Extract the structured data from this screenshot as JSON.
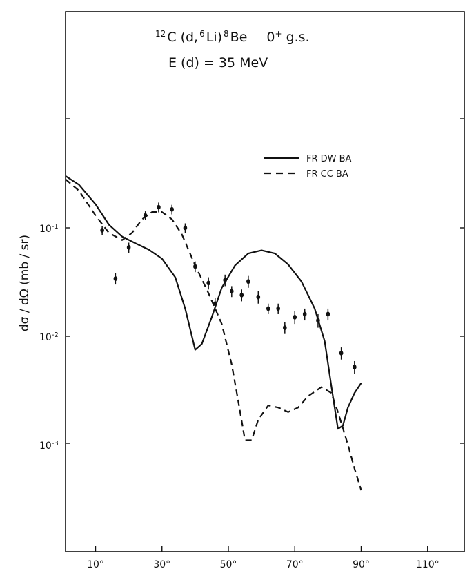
{
  "chart_data": {
    "type": "line",
    "title_lines": [
      "12C(d,6Li)8Be   0+ g.s.",
      "E(d)=35 MeV"
    ],
    "title": {
      "reaction": [
        {
          "sup": "12",
          "text": "C (d,"
        },
        {
          "sup": "6",
          "text": "Li)"
        },
        {
          "sup": "8",
          "text": "Be"
        },
        {
          "text": "0"
        },
        {
          "sup": "+",
          "text": "g.s."
        }
      ],
      "energy": "E (d) = 35  MeV"
    },
    "ylabel": "dσ / dΩ   (mb / sr)",
    "xlabel": "",
    "xlim": [
      0,
      120
    ],
    "ylim": [
      0.00016,
      1.3
    ],
    "yscale": "log",
    "x_ticks": [
      10,
      30,
      50,
      70,
      90,
      110
    ],
    "x_tick_labels": [
      "10°",
      "30°",
      "50°",
      "70°",
      "90°",
      "110°"
    ],
    "y_ticks": [
      0.1,
      0.01,
      0.001
    ],
    "y_tick_labels": [
      {
        "base": "10",
        "exp": "-1"
      },
      {
        "base": "10",
        "exp": "-2"
      },
      {
        "base": "10",
        "exp": "-3"
      }
    ],
    "legend_position": "upper-right",
    "series": [
      {
        "name": "FR DW BA",
        "style": "solid",
        "points": [
          [
            1,
            0.3
          ],
          [
            5,
            0.25
          ],
          [
            10,
            0.165
          ],
          [
            14,
            0.107
          ],
          [
            18,
            0.083
          ],
          [
            22,
            0.072
          ],
          [
            26,
            0.063
          ],
          [
            30,
            0.052
          ],
          [
            34,
            0.035
          ],
          [
            37,
            0.018
          ],
          [
            40,
            0.0075
          ],
          [
            42,
            0.0085
          ],
          [
            45,
            0.015
          ],
          [
            48,
            0.028
          ],
          [
            52,
            0.045
          ],
          [
            56,
            0.058
          ],
          [
            60,
            0.062
          ],
          [
            64,
            0.058
          ],
          [
            68,
            0.046
          ],
          [
            72,
            0.032
          ],
          [
            76,
            0.018
          ],
          [
            79,
            0.009
          ],
          [
            81,
            0.0035
          ],
          [
            83,
            0.0014
          ],
          [
            84.5,
            0.0015
          ],
          [
            86,
            0.0022
          ],
          [
            88,
            0.003
          ],
          [
            90,
            0.0037
          ]
        ]
      },
      {
        "name": "FR CC BA",
        "style": "dashed",
        "points": [
          [
            1,
            0.28
          ],
          [
            5,
            0.22
          ],
          [
            10,
            0.13
          ],
          [
            14,
            0.09
          ],
          [
            18,
            0.077
          ],
          [
            21,
            0.09
          ],
          [
            24,
            0.12
          ],
          [
            27,
            0.14
          ],
          [
            30,
            0.14
          ],
          [
            33,
            0.12
          ],
          [
            36,
            0.087
          ],
          [
            40,
            0.045
          ],
          [
            44,
            0.025
          ],
          [
            48,
            0.013
          ],
          [
            51,
            0.0055
          ],
          [
            53,
            0.0025
          ],
          [
            55,
            0.0011
          ],
          [
            57,
            0.0011
          ],
          [
            59,
            0.0017
          ],
          [
            62,
            0.0023
          ],
          [
            65,
            0.0022
          ],
          [
            68,
            0.002
          ],
          [
            71,
            0.0022
          ],
          [
            74,
            0.0028
          ],
          [
            78,
            0.0034
          ],
          [
            81,
            0.003
          ],
          [
            83,
            0.002
          ],
          [
            86,
            0.001
          ],
          [
            88,
            0.0006
          ],
          [
            90,
            0.00038
          ]
        ]
      }
    ],
    "data_points": [
      {
        "x": 12,
        "y": 0.095,
        "err": 0.009
      },
      {
        "x": 16,
        "y": 0.034,
        "err": 0.004
      },
      {
        "x": 20,
        "y": 0.066,
        "err": 0.007
      },
      {
        "x": 25,
        "y": 0.13,
        "err": 0.012
      },
      {
        "x": 29,
        "y": 0.155,
        "err": 0.016
      },
      {
        "x": 33,
        "y": 0.148,
        "err": 0.015
      },
      {
        "x": 37,
        "y": 0.1,
        "err": 0.01
      },
      {
        "x": 40,
        "y": 0.044,
        "err": 0.005
      },
      {
        "x": 44,
        "y": 0.031,
        "err": 0.004
      },
      {
        "x": 46,
        "y": 0.02,
        "err": 0.0025
      },
      {
        "x": 49,
        "y": 0.033,
        "err": 0.004
      },
      {
        "x": 51,
        "y": 0.026,
        "err": 0.003
      },
      {
        "x": 54,
        "y": 0.024,
        "err": 0.003
      },
      {
        "x": 56,
        "y": 0.032,
        "err": 0.004
      },
      {
        "x": 59,
        "y": 0.023,
        "err": 0.003
      },
      {
        "x": 62,
        "y": 0.018,
        "err": 0.002
      },
      {
        "x": 65,
        "y": 0.018,
        "err": 0.002
      },
      {
        "x": 67,
        "y": 0.012,
        "err": 0.0015
      },
      {
        "x": 70,
        "y": 0.015,
        "err": 0.002
      },
      {
        "x": 73,
        "y": 0.016,
        "err": 0.002
      },
      {
        "x": 77,
        "y": 0.014,
        "err": 0.002
      },
      {
        "x": 80,
        "y": 0.016,
        "err": 0.002
      },
      {
        "x": 84,
        "y": 0.007,
        "err": 0.0009
      },
      {
        "x": 88,
        "y": 0.0052,
        "err": 0.0007
      }
    ]
  }
}
